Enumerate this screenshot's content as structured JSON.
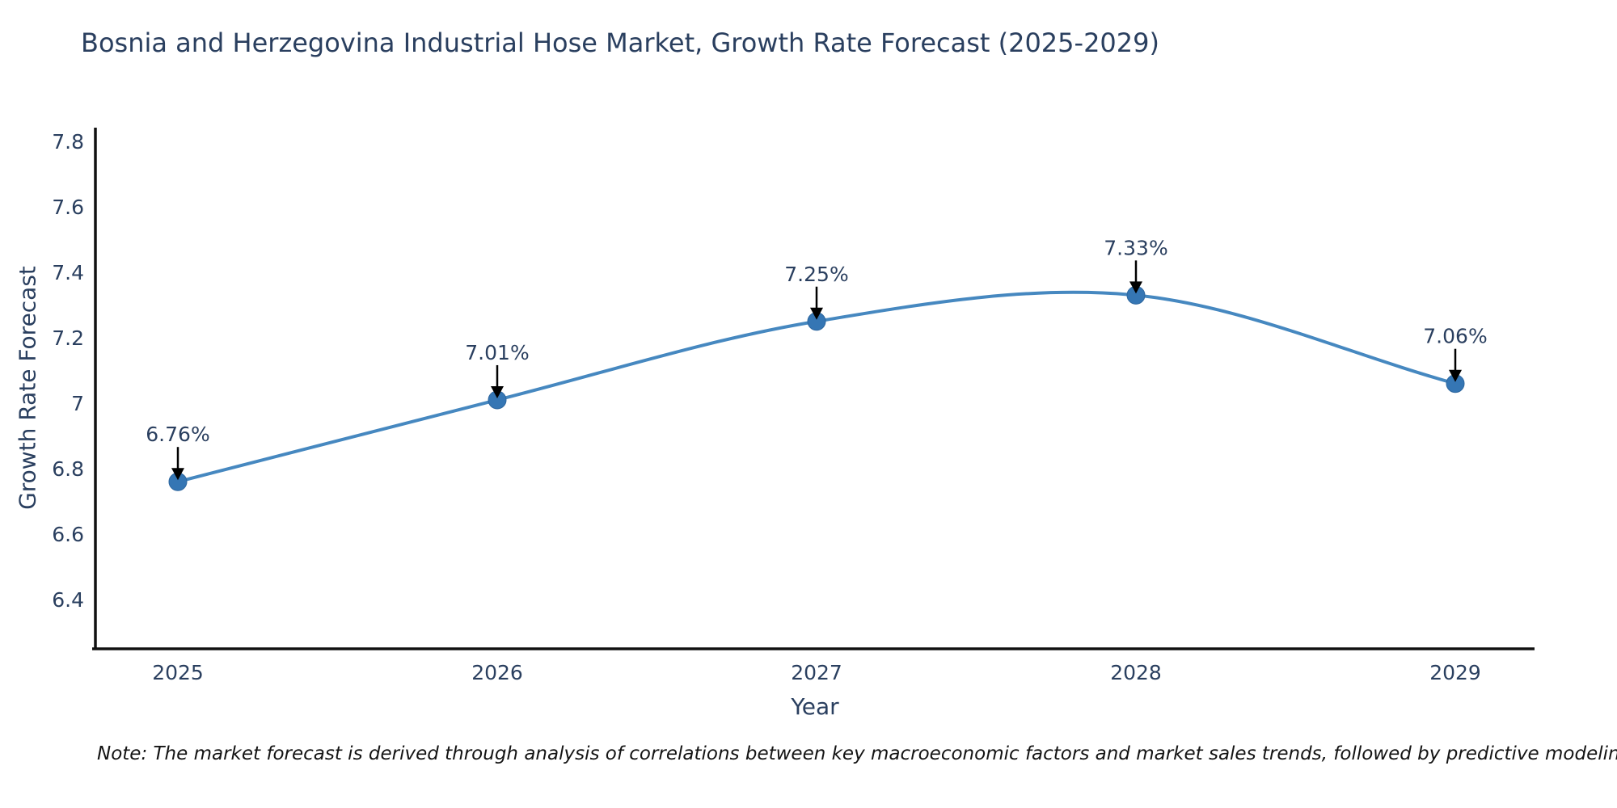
{
  "note": "Note: The market forecast is derived through analysis of correlations between key macroeconomic factors and market sales trends, followed by predictive modeling to project future sales",
  "chart_data": {
    "type": "line",
    "title": "Bosnia and Herzegovina Industrial Hose Market, Growth Rate Forecast (2025-2029)",
    "xlabel": "Year",
    "ylabel": "Growth Rate Forecast",
    "categories": [
      "2025",
      "2026",
      "2027",
      "2028",
      "2029"
    ],
    "values": [
      6.76,
      7.01,
      7.25,
      7.33,
      7.06
    ],
    "point_labels": [
      "6.76%",
      "7.01%",
      "7.25%",
      "7.33%",
      "7.06%"
    ],
    "ytick_values": [
      6.4,
      6.6,
      6.8,
      7,
      7.2,
      7.4,
      7.6,
      7.8
    ],
    "ytick_labels": [
      "6.4",
      "6.6",
      "6.8",
      "7",
      "7.2",
      "7.4",
      "7.6",
      "7.8"
    ],
    "ylim": [
      6.26,
      7.85
    ],
    "line_shape": "spline",
    "grid": false,
    "legend": "none",
    "colors": {
      "line": "#4688c0",
      "marker": "#3576b4",
      "marker_edge": "#2d669e",
      "axis": "#111111",
      "tick_text": "#2a3f5f",
      "annotation_text": "#2a3f5f",
      "arrow": "#000000",
      "background": "#ffffff"
    }
  }
}
